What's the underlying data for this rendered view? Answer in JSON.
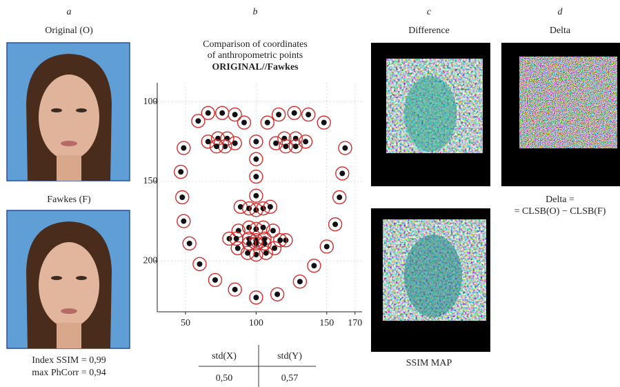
{
  "panels": {
    "a": {
      "letter": "a",
      "top_label": "Original (O)",
      "bottom_label": "Fawkes (F)",
      "metrics": [
        "Index SSIM = 0,99",
        "max PhCorr = 0,94"
      ]
    },
    "b": {
      "letter": "b"
    },
    "c": {
      "letter": "c",
      "top_label": "Difference",
      "bottom_label": "SSIM MAP"
    },
    "d": {
      "letter": "d",
      "top_label": "Delta",
      "formula": [
        "Delta =",
        "= CLSB(O) − CLSB(F)"
      ]
    }
  },
  "table": {
    "headers": [
      "std(X)",
      "std(Y)"
    ],
    "rows": [
      [
        "0,50",
        "0,57"
      ]
    ]
  },
  "chart_data": {
    "type": "scatter",
    "title": [
      "Comparison of coordinates",
      "of anthropometric points",
      "ORIGINAL//Fawkes"
    ],
    "x": [
      48.7,
      46.7,
      47.7,
      48.7,
      52.8,
      60,
      71,
      85,
      100,
      115,
      131,
      141,
      150,
      156,
      159,
      161,
      163,
      59,
      66,
      76,
      85,
      91.5,
      108,
      116,
      127,
      137,
      148,
      100,
      100,
      100,
      100,
      89,
      95,
      100,
      105,
      110,
      66,
      73,
      79.5,
      85,
      78,
      72,
      114,
      120,
      128,
      135,
      128,
      121,
      81,
      87.5,
      95,
      100,
      105,
      112,
      121,
      113,
      107,
      100,
      94,
      87,
      86,
      95,
      100,
      106,
      117,
      106,
      100,
      95
    ],
    "values": [
      129,
      144,
      160,
      175,
      189,
      202,
      212,
      218,
      223,
      221,
      213,
      203,
      191,
      177,
      160,
      145,
      129,
      112,
      107,
      107,
      108,
      113,
      113,
      108,
      107,
      108,
      113,
      125,
      136,
      147,
      159,
      166,
      167,
      168,
      167,
      166,
      125,
      123,
      123,
      126,
      128,
      128,
      126,
      123,
      123,
      125,
      128,
      128,
      186,
      181,
      179,
      180,
      179,
      181,
      187,
      192,
      195,
      196,
      195,
      192,
      186,
      186,
      187,
      186,
      187,
      189,
      189,
      189
    ],
    "xlim": [
      30,
      175
    ],
    "ylim": [
      88,
      232
    ],
    "y_inverted": true,
    "xticks": [
      50,
      100,
      150,
      170
    ],
    "yticks": [
      100,
      150,
      200
    ],
    "grid": true,
    "color": "#111111",
    "ring_color": "#d42a2a"
  }
}
